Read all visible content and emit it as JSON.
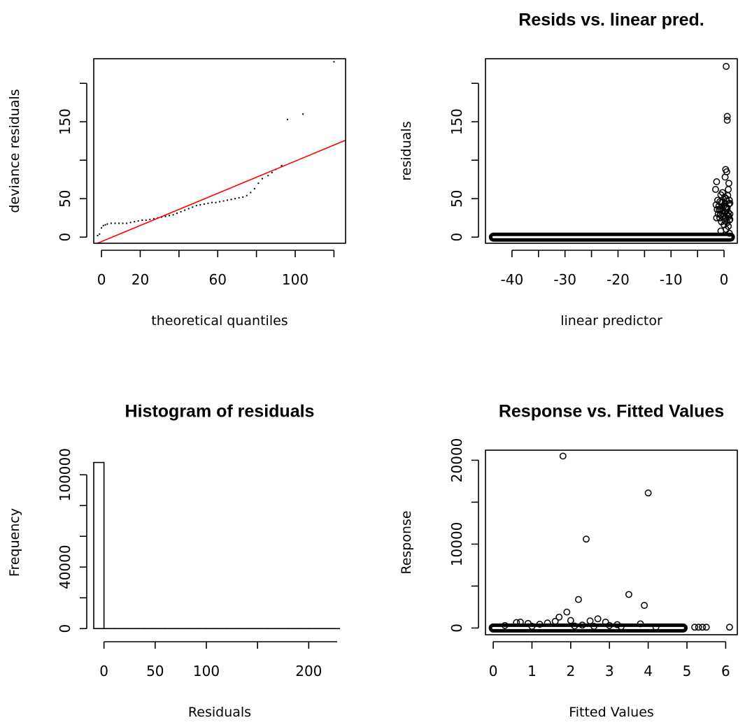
{
  "chart_data": [
    {
      "type": "scatter",
      "title": "",
      "xlabel": "theoretical quantiles",
      "ylabel": "deviance residuals",
      "xlim": [
        -4,
        126
      ],
      "ylim": [
        -8,
        232
      ],
      "xticks": [
        0,
        20,
        40,
        60,
        80,
        100,
        120
      ],
      "xtick_labels": [
        "0",
        "20",
        "",
        "60",
        "",
        "100",
        ""
      ],
      "yticks": [
        0,
        50,
        100,
        150,
        200
      ],
      "ytick_labels": [
        "0",
        "50",
        "",
        "150",
        ""
      ],
      "series": [
        {
          "kind": "points",
          "x": [
            -2,
            -1,
            0,
            1,
            2,
            3,
            5,
            7,
            9,
            11,
            13,
            15,
            17,
            19,
            21,
            23,
            25,
            27,
            29,
            31,
            33,
            35,
            37,
            39,
            41,
            43,
            45,
            47,
            49,
            51,
            53,
            55,
            57,
            59,
            61,
            63,
            65,
            67,
            69,
            71,
            73,
            75,
            77,
            79,
            81,
            83,
            86,
            88,
            90,
            93,
            96,
            104,
            120
          ],
          "y": [
            2,
            4,
            12,
            15,
            16,
            17,
            18,
            18,
            18,
            18,
            18,
            19,
            20,
            21,
            22,
            22,
            23,
            24,
            25,
            26,
            27,
            28,
            29,
            31,
            33,
            35,
            37,
            39,
            41,
            42,
            43,
            44,
            45,
            45,
            46,
            47,
            48,
            49,
            50,
            51,
            52,
            54,
            58,
            63,
            70,
            76,
            80,
            84,
            88,
            93,
            153,
            160,
            228
          ]
        },
        {
          "kind": "line",
          "color": "#ff0000",
          "x": [
            -4,
            126
          ],
          "y": [
            -10,
            126
          ]
        }
      ]
    },
    {
      "type": "scatter",
      "title": "Resids vs. linear pred.",
      "xlabel": "linear predictor",
      "ylabel": "residuals",
      "xlim": [
        -45,
        2.5
      ],
      "ylim": [
        -8,
        232
      ],
      "xticks": [
        -40,
        -35,
        -30,
        -25,
        -20,
        -15,
        -10,
        -5,
        0
      ],
      "xtick_labels": [
        "-40",
        "",
        "-30",
        "",
        "-20",
        "",
        "-10",
        "",
        "0"
      ],
      "yticks": [
        0,
        50,
        100,
        150,
        200
      ],
      "ytick_labels": [
        "0",
        "50",
        "",
        "150",
        ""
      ],
      "series": [
        {
          "kind": "band",
          "x": [
            -43.5,
            1.2
          ],
          "y": 0
        },
        {
          "kind": "points",
          "x": [
            0.4,
            0.6,
            0.6,
            0.3,
            0.5,
            -1.4,
            -1.6,
            0.2,
            0.8,
            0.9,
            -0.6,
            -0.3,
            0.1,
            0.4,
            0.7,
            1.0,
            -1.2,
            -0.8,
            -0.5,
            0.2,
            0.5,
            0.9,
            -1.5,
            -1.0,
            -0.4,
            0.0,
            0.3,
            0.6,
            1.1,
            -1.3,
            -0.9,
            -0.6,
            -0.2,
            0.1,
            0.4,
            0.8,
            1.1,
            -1.1,
            -0.7,
            -0.3,
            0.0,
            0.5,
            0.9,
            -0.8,
            -0.2,
            0.3,
            0.7,
            1.0,
            -0.5,
            0.2,
            0.6,
            1.1,
            -1.4,
            0.0,
            0.8,
            0.4,
            -0.6,
            1.0
          ],
          "y": [
            222,
            157,
            152,
            88,
            85,
            72,
            62,
            78,
            62,
            70,
            55,
            58,
            52,
            50,
            54,
            48,
            48,
            46,
            45,
            44,
            47,
            43,
            42,
            40,
            40,
            41,
            39,
            38,
            44,
            36,
            35,
            36,
            34,
            33,
            37,
            32,
            30,
            30,
            29,
            31,
            28,
            30,
            27,
            25,
            26,
            24,
            28,
            22,
            20,
            21,
            19,
            23,
            25,
            16,
            14,
            10,
            8,
            5
          ]
        }
      ]
    },
    {
      "type": "bar",
      "title": "Histogram of residuals",
      "xlabel": "Residuals",
      "ylabel": "Frequency",
      "xlim": [
        -10,
        236
      ],
      "ylim": [
        -4000,
        116000
      ],
      "xticks": [
        0,
        50,
        100,
        150,
        200
      ],
      "xtick_labels": [
        "0",
        "50",
        "100",
        "",
        "200"
      ],
      "yticks": [
        0,
        20000,
        40000,
        60000,
        80000,
        100000
      ],
      "ytick_labels": [
        "0",
        "",
        "40000",
        "",
        "",
        "100000"
      ],
      "bins": [
        {
          "x0": -10,
          "x1": 0,
          "count": 108000
        },
        {
          "x0": 0,
          "x1": 10,
          "count": 0
        },
        {
          "x0": 10,
          "x1": 20,
          "count": 0
        },
        {
          "x0": 20,
          "x1": 30,
          "count": 0
        },
        {
          "x0": 30,
          "x1": 40,
          "count": 0
        },
        {
          "x0": 40,
          "x1": 50,
          "count": 0
        },
        {
          "x0": 50,
          "x1": 60,
          "count": 0
        },
        {
          "x0": 60,
          "x1": 70,
          "count": 0
        },
        {
          "x0": 70,
          "x1": 80,
          "count": 0
        },
        {
          "x0": 80,
          "x1": 90,
          "count": 0
        },
        {
          "x0": 90,
          "x1": 100,
          "count": 0
        },
        {
          "x0": 100,
          "x1": 110,
          "count": 0
        },
        {
          "x0": 110,
          "x1": 120,
          "count": 0
        },
        {
          "x0": 120,
          "x1": 130,
          "count": 0
        },
        {
          "x0": 130,
          "x1": 140,
          "count": 0
        },
        {
          "x0": 140,
          "x1": 150,
          "count": 0
        },
        {
          "x0": 150,
          "x1": 160,
          "count": 0
        },
        {
          "x0": 160,
          "x1": 170,
          "count": 0
        },
        {
          "x0": 170,
          "x1": 180,
          "count": 0
        },
        {
          "x0": 180,
          "x1": 190,
          "count": 0
        },
        {
          "x0": 190,
          "x1": 200,
          "count": 0
        },
        {
          "x0": 200,
          "x1": 210,
          "count": 0
        },
        {
          "x0": 210,
          "x1": 220,
          "count": 0
        },
        {
          "x0": 220,
          "x1": 230,
          "count": 0
        }
      ]
    },
    {
      "type": "scatter",
      "title": "Response vs. Fitted Values",
      "xlabel": "Fitted Values",
      "ylabel": "Response",
      "xlim": [
        -0.2,
        6.3
      ],
      "ylim": [
        -800,
        21200
      ],
      "xticks": [
        0,
        1,
        2,
        3,
        4,
        5,
        6
      ],
      "xtick_labels": [
        "0",
        "1",
        "2",
        "3",
        "4",
        "5",
        "6"
      ],
      "yticks": [
        0,
        5000,
        10000,
        15000,
        20000
      ],
      "ytick_labels": [
        "0",
        "",
        "10000",
        "",
        "20000"
      ],
      "series": [
        {
          "kind": "band",
          "x": [
            0.0,
            4.9
          ],
          "y": 0
        },
        {
          "kind": "points",
          "x": [
            1.8,
            4.0,
            2.4,
            2.2,
            3.5,
            3.9,
            1.9,
            1.7,
            2.7,
            2.0,
            1.6,
            2.5,
            0.7,
            0.6,
            1.4,
            2.9,
            3.2,
            3.8,
            1.2,
            0.9,
            2.3,
            3.0,
            5.2,
            5.3,
            5.4,
            5.5,
            6.1,
            0.3,
            1.0,
            2.1,
            2.6,
            3.3,
            4.2
          ],
          "y": [
            20500,
            16100,
            10600,
            3400,
            4000,
            2700,
            1900,
            1300,
            1100,
            900,
            800,
            850,
            700,
            650,
            600,
            700,
            400,
            500,
            450,
            550,
            350,
            300,
            100,
            100,
            100,
            100,
            100,
            300,
            200,
            250,
            200,
            150,
            100
          ]
        }
      ]
    }
  ]
}
